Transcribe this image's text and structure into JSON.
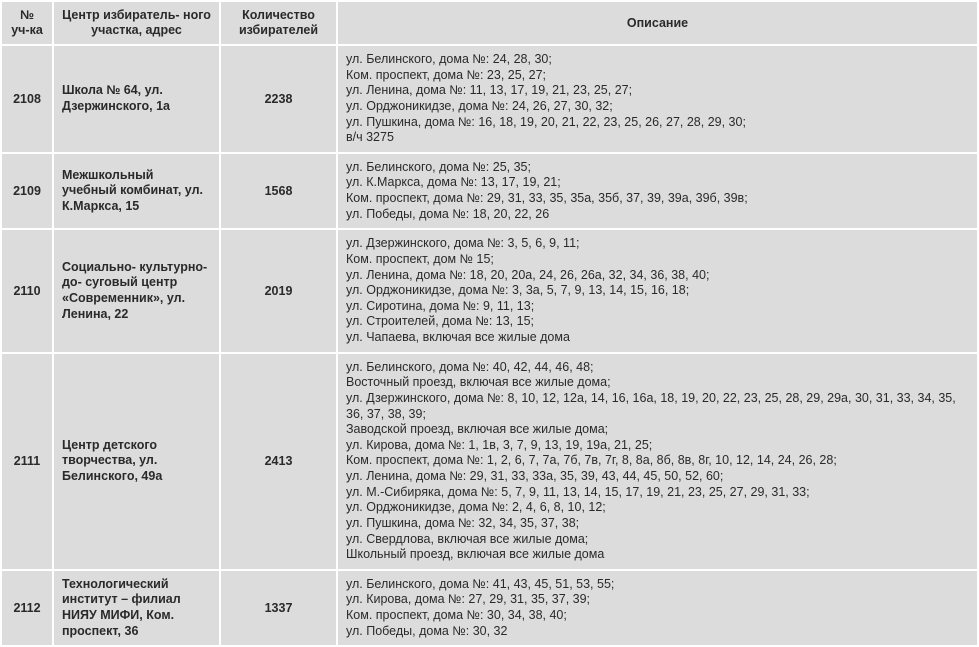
{
  "headers": {
    "num": "№ уч-ка",
    "center": "Центр избиратель- ного участка, адрес",
    "voters": "Количество избирателей",
    "desc": "Описание"
  },
  "rows": [
    {
      "num": "2108",
      "center": "Школа № 64, ул. Дзержинского, 1а",
      "voters": "2238",
      "desc": [
        "ул. Белинского, дома №: 24, 28, 30;",
        "Ком. проспект, дома №: 23, 25, 27;",
        "ул. Ленина, дома №: 11, 13, 17, 19, 21, 23, 25, 27;",
        "ул. Орджоникидзе, дома №: 24, 26, 27, 30, 32;",
        "ул. Пушкина, дома №: 16, 18, 19, 20, 21, 22, 23, 25, 26, 27, 28, 29, 30;",
        "в/ч 3275"
      ]
    },
    {
      "num": "2109",
      "center": "Межшкольный учебный комбинат, ул. К.Маркса, 15",
      "voters": "1568",
      "desc": [
        "ул. Белинского, дома №: 25, 35;",
        "ул. К.Маркса, дома №: 13, 17, 19, 21;",
        "Ком. проспект, дома №: 29, 31, 33, 35, 35а, 35б, 37, 39, 39а, 39б, 39в;",
        "ул. Победы, дома №: 18, 20, 22, 26"
      ]
    },
    {
      "num": "2110",
      "center": "Социально- культурно-до- суговый центр «Современник», ул. Ленина, 22",
      "voters": "2019",
      "desc": [
        "ул. Дзержинского, дома №: 3, 5, 6, 9, 11;",
        "Ком. проспект, дом № 15;",
        "ул. Ленина, дома №: 18, 20, 20а, 24, 26, 26а, 32, 34, 36, 38, 40;",
        "ул. Орджоникидзе, дома №: 3, 3а, 5, 7, 9, 13, 14, 15, 16, 18;",
        "ул. Сиротина, дома №: 9, 11, 13;",
        "ул. Строителей, дома №: 13, 15;",
        "ул. Чапаева, включая все жилые дома"
      ]
    },
    {
      "num": "2111",
      "center": "Центр детского творчества, ул. Белинского, 49а",
      "voters": "2413",
      "desc": [
        "ул. Белинского, дома №: 40, 42, 44, 46, 48;",
        "Восточный проезд, включая все жилые дома;",
        "ул. Дзержинского, дома №: 8, 10, 12, 12а, 14, 16, 16а, 18, 19, 20, 22, 23, 25, 28, 29, 29а, 30, 31, 33, 34, 35, 36, 37, 38, 39;",
        "Заводской проезд, включая все жилые дома;",
        "ул. Кирова, дома №: 1, 1в, 3, 7, 9, 13, 19, 19а, 21, 25;",
        "Ком. проспект, дома №: 1, 2, 6, 7, 7а, 7б, 7в, 7г, 8, 8а, 8б, 8в, 8г, 10, 12, 14, 24, 26, 28;",
        "ул. Ленина, дома №: 29, 31, 33, 33а, 35, 39, 43, 44, 45, 50, 52, 60;",
        "ул. М.-Сибиряка, дома №: 5, 7, 9, 11, 13, 14, 15, 17, 19, 21, 23, 25, 27, 29, 31, 33;",
        "ул. Орджоникидзе, дома №: 2, 4, 6, 8, 10, 12;",
        "ул. Пушкина, дома №: 32, 34, 35, 37, 38;",
        "ул. Свердлова, включая все жилые дома;",
        "Школьный проезд, включая все жилые дома"
      ]
    },
    {
      "num": "2112",
      "center": "Технологический институт – филиал НИЯУ МИФИ, Ком. проспект, 36",
      "voters": "1337",
      "desc": [
        "ул. Белинского, дома №: 41, 43, 45, 51, 53, 55;",
        "ул. Кирова, дома №: 27, 29, 31, 35, 37, 39;",
        "Ком. проспект, дома №: 30, 34, 38, 40;",
        "ул. Победы, дома №: 30, 32"
      ]
    }
  ]
}
